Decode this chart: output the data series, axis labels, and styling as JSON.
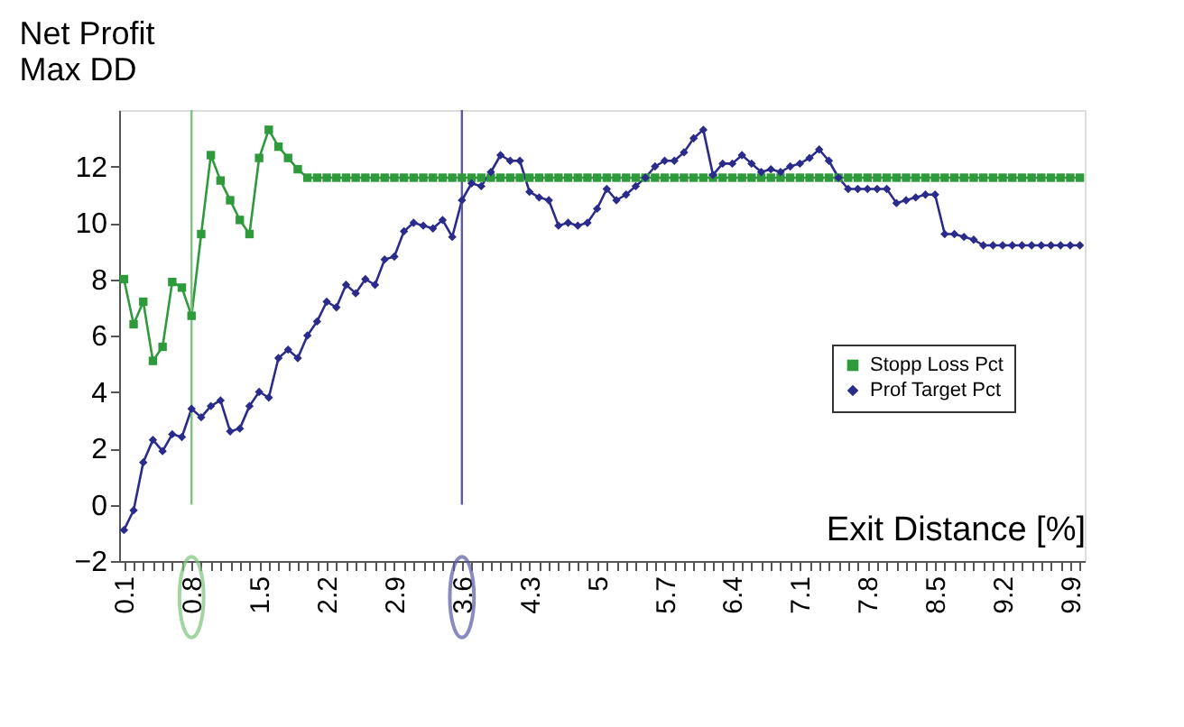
{
  "chart_data": {
    "type": "line",
    "ylabel": "Net Profit\nMax DD",
    "xlabel": "Exit Distance [%]",
    "categories": [
      "0.1",
      null,
      null,
      null,
      null,
      null,
      null,
      "0.8",
      null,
      null,
      null,
      null,
      null,
      null,
      "1.5",
      null,
      null,
      null,
      null,
      null,
      null,
      "2.2",
      null,
      null,
      null,
      null,
      null,
      null,
      "2.9",
      null,
      null,
      null,
      null,
      null,
      null,
      "3.6",
      null,
      null,
      null,
      null,
      null,
      null,
      "4.3",
      null,
      null,
      null,
      null,
      null,
      null,
      "5",
      null,
      null,
      null,
      null,
      null,
      null,
      "5.7",
      null,
      null,
      null,
      null,
      null,
      null,
      "6.4",
      null,
      null,
      null,
      null,
      null,
      null,
      "7.1",
      null,
      null,
      null,
      null,
      null,
      null,
      "7.8",
      null,
      null,
      null,
      null,
      null,
      null,
      "8.5",
      null,
      null,
      null,
      null,
      null,
      null,
      "9.2",
      null,
      null,
      null,
      null,
      null,
      null,
      "9.9",
      null
    ],
    "series": [
      {
        "name": "Stopp Loss Pct",
        "color": "#2f9a3c",
        "marker": "square",
        "values": [
          8.0,
          6.4,
          7.2,
          5.1,
          5.6,
          7.9,
          7.7,
          6.7,
          9.6,
          12.4,
          11.5,
          10.8,
          10.1,
          9.6,
          12.3,
          13.3,
          12.7,
          12.3,
          11.9,
          11.6,
          11.6,
          11.6,
          11.6,
          11.6,
          11.6,
          11.6,
          11.6,
          11.6,
          11.6,
          11.6,
          11.6,
          11.6,
          11.6,
          11.6,
          11.6,
          11.6,
          11.6,
          11.6,
          11.6,
          11.6,
          11.6,
          11.6,
          11.6,
          11.6,
          11.6,
          11.6,
          11.6,
          11.6,
          11.6,
          11.6,
          11.6,
          11.6,
          11.6,
          11.6,
          11.6,
          11.6,
          11.6,
          11.6,
          11.6,
          11.6,
          11.6,
          11.6,
          11.6,
          11.6,
          11.6,
          11.6,
          11.6,
          11.6,
          11.6,
          11.6,
          11.6,
          11.6,
          11.6,
          11.6,
          11.6,
          11.6,
          11.6,
          11.6,
          11.6,
          11.6,
          11.6,
          11.6,
          11.6,
          11.6,
          11.6,
          11.6,
          11.6,
          11.6,
          11.6,
          11.6,
          11.6,
          11.6,
          11.6,
          11.6,
          11.6,
          11.6,
          11.6,
          11.6,
          11.6,
          11.6
        ]
      },
      {
        "name": "Prof Target Pct",
        "color": "#2b2b8c",
        "marker": "diamond",
        "values": [
          -0.9,
          -0.2,
          1.5,
          2.3,
          1.9,
          2.5,
          2.4,
          3.4,
          3.1,
          3.5,
          3.7,
          2.6,
          2.7,
          3.5,
          4.0,
          3.8,
          5.2,
          5.5,
          5.2,
          6.0,
          6.5,
          7.2,
          7.0,
          7.8,
          7.5,
          8.0,
          7.8,
          8.7,
          8.8,
          9.7,
          10.0,
          9.9,
          9.8,
          10.1,
          9.5,
          10.8,
          11.4,
          11.3,
          11.8,
          12.4,
          12.2,
          12.2,
          11.1,
          10.9,
          10.8,
          9.9,
          10.0,
          9.9,
          10.0,
          10.5,
          11.2,
          10.8,
          11.0,
          11.3,
          11.6,
          12.0,
          12.2,
          12.2,
          12.5,
          13.0,
          13.3,
          11.7,
          12.1,
          12.1,
          12.4,
          12.1,
          11.8,
          11.9,
          11.8,
          12.0,
          12.1,
          12.3,
          12.6,
          12.2,
          11.6,
          11.2,
          11.2,
          11.2,
          11.2,
          11.2,
          10.7,
          10.8,
          10.9,
          11.0,
          11.0,
          9.6,
          9.6,
          9.5,
          9.4,
          9.2,
          9.2,
          9.2,
          9.2,
          9.2,
          9.2,
          9.2,
          9.2,
          9.2,
          9.2,
          9.2
        ]
      }
    ],
    "ylim": [
      -2,
      14
    ],
    "yticks": [
      -2,
      0,
      2,
      4,
      6,
      8,
      10,
      12
    ],
    "grid": false,
    "legend": "right",
    "ref_lines": [
      {
        "axis": "x",
        "value": "0.8",
        "color": "#7cc47c"
      },
      {
        "axis": "x",
        "value": "3.6",
        "color": "#5a5aa8"
      }
    ]
  }
}
